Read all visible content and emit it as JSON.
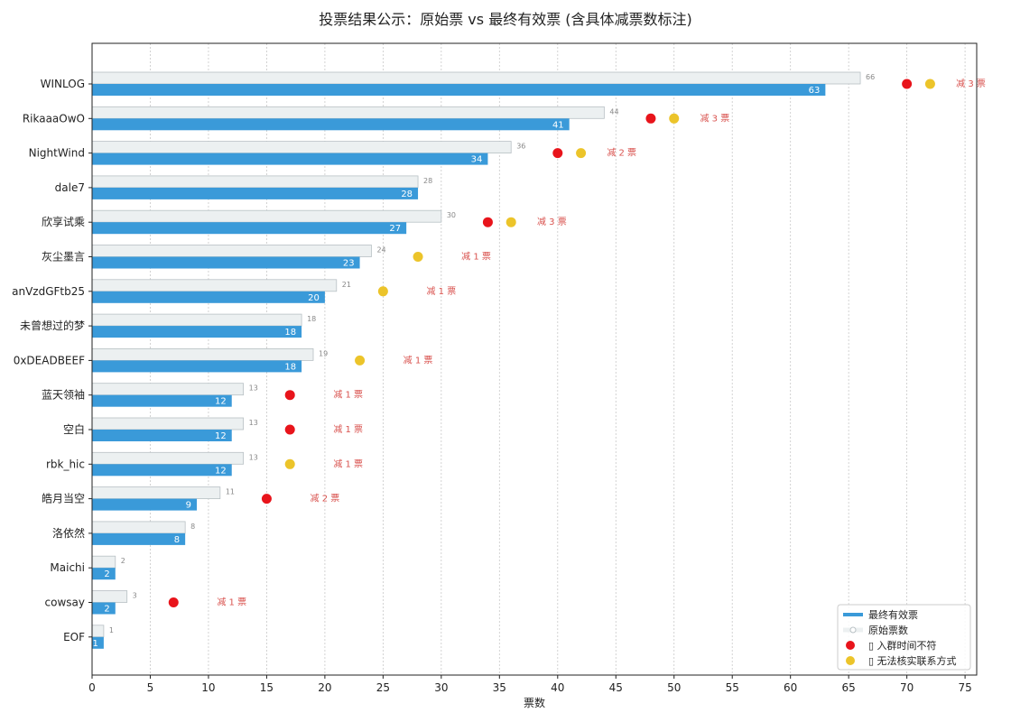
{
  "chart_data": {
    "type": "bar",
    "orientation": "horizontal",
    "title": "投票结果公示：原始票 vs 最终有效票 (含具体减票数标注)",
    "xlabel": "票数",
    "ylabel": "",
    "xlim": [
      0,
      76
    ],
    "xticks": [
      0,
      5,
      10,
      15,
      20,
      25,
      30,
      35,
      40,
      45,
      50,
      55,
      60,
      65,
      70,
      75
    ],
    "grid": "x-dotted",
    "categories": [
      "WINLOG",
      "RikaaaOwO",
      "NightWind",
      "dale7",
      "欣享试乘",
      "灰尘墨言",
      "anVzdGFtb25",
      "未曾想过的梦",
      "0xDEADBEEF",
      "蓝天领袖",
      "空白",
      "rbk_hic",
      "皓月当空",
      "洛依然",
      "Maichi",
      "cowsay",
      "EOF"
    ],
    "series": [
      {
        "name": "最终有效票",
        "color": "#3a9ad9",
        "values": [
          63,
          41,
          34,
          28,
          27,
          23,
          20,
          18,
          18,
          12,
          12,
          12,
          9,
          8,
          2,
          2,
          1
        ]
      },
      {
        "name": "原始票数",
        "color": "#ecf0f1",
        "values": [
          66,
          44,
          36,
          28,
          30,
          24,
          21,
          18,
          19,
          13,
          13,
          13,
          11,
          8,
          2,
          3,
          1
        ]
      }
    ],
    "markers": [
      {
        "category": "WINLOG",
        "type": "red",
        "x": 70
      },
      {
        "category": "WINLOG",
        "type": "yellow",
        "x": 72
      },
      {
        "category": "RikaaaOwO",
        "type": "red",
        "x": 48
      },
      {
        "category": "RikaaaOwO",
        "type": "yellow",
        "x": 50
      },
      {
        "category": "NightWind",
        "type": "red",
        "x": 40
      },
      {
        "category": "NightWind",
        "type": "yellow",
        "x": 42
      },
      {
        "category": "欣享试乘",
        "type": "red",
        "x": 34
      },
      {
        "category": "欣享试乘",
        "type": "yellow",
        "x": 36
      },
      {
        "category": "灰尘墨言",
        "type": "yellow",
        "x": 28
      },
      {
        "category": "anVzdGFtb25",
        "type": "yellow",
        "x": 25
      },
      {
        "category": "0xDEADBEEF",
        "type": "yellow",
        "x": 23
      },
      {
        "category": "蓝天领袖",
        "type": "red",
        "x": 17
      },
      {
        "category": "空白",
        "type": "red",
        "x": 17
      },
      {
        "category": "rbk_hic",
        "type": "yellow",
        "x": 17
      },
      {
        "category": "皓月当空",
        "type": "red",
        "x": 15
      },
      {
        "category": "cowsay",
        "type": "red",
        "x": 7
      }
    ],
    "annotations": [
      {
        "category": "WINLOG",
        "x": 75.5,
        "text": "减 3 票"
      },
      {
        "category": "RikaaaOwO",
        "x": 53.5,
        "text": "减 3 票"
      },
      {
        "category": "NightWind",
        "x": 45.5,
        "text": "减 2 票"
      },
      {
        "category": "欣享试乘",
        "x": 39.5,
        "text": "减 3 票"
      },
      {
        "category": "灰尘墨言",
        "x": 33,
        "text": "减 1 票"
      },
      {
        "category": "anVzdGFtb25",
        "x": 30,
        "text": "减 1 票"
      },
      {
        "category": "0xDEADBEEF",
        "x": 28,
        "text": "减 1 票"
      },
      {
        "category": "蓝天领袖",
        "x": 22,
        "text": "减 1 票"
      },
      {
        "category": "空白",
        "x": 22,
        "text": "减 1 票"
      },
      {
        "category": "rbk_hic",
        "x": 22,
        "text": "减 1 票"
      },
      {
        "category": "皓月当空",
        "x": 20,
        "text": "减 2 票"
      },
      {
        "category": "cowsay",
        "x": 12,
        "text": "减 1 票"
      }
    ],
    "legend": {
      "position": "bottom-right",
      "items": [
        {
          "label": "最终有效票",
          "kind": "line",
          "color": "#3a9ad9"
        },
        {
          "label": "原始票数",
          "kind": "line-light",
          "color": "#ecf0f1"
        },
        {
          "label": "▯ 入群时间不符",
          "kind": "dot",
          "color": "#e8141b"
        },
        {
          "label": "▯ 无法核实联系方式",
          "kind": "dot",
          "color": "#ecc42a"
        }
      ]
    }
  }
}
